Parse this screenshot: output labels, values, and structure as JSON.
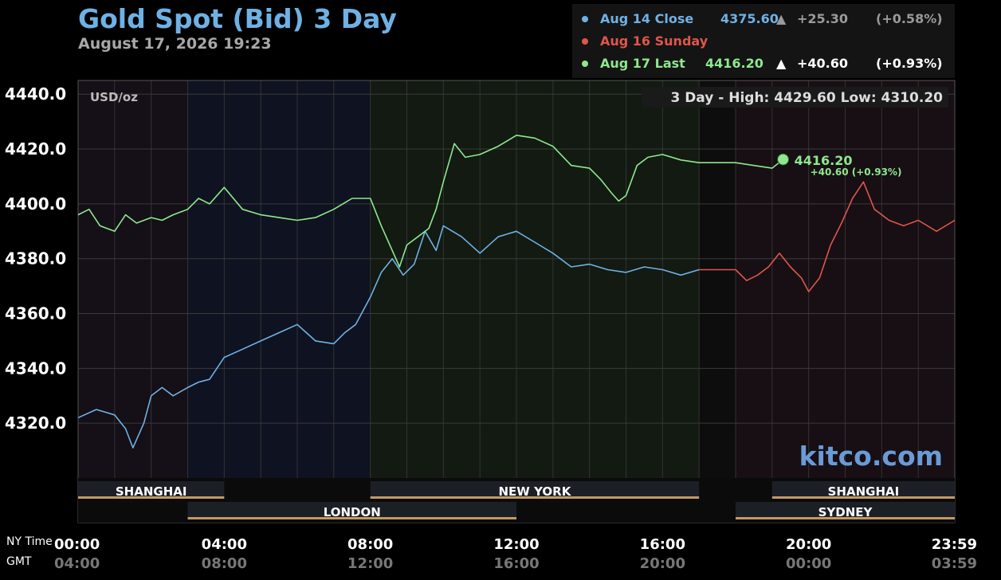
{
  "header": {
    "title": "Gold Spot (Bid) 3 Day",
    "timestamp": "August 17, 2026 19:23"
  },
  "legend": [
    {
      "label": "Aug 14 Close",
      "price": "4375.60",
      "arrow": "▲",
      "change": "+25.30",
      "pct": "(+0.58%)",
      "color": "#6fb1e4",
      "change_color": "#9a9a9a"
    },
    {
      "label": "Aug 16 Sunday",
      "price": "",
      "arrow": "",
      "change": "",
      "pct": "",
      "color": "#e0554a",
      "change_color": "#9a9a9a"
    },
    {
      "label": "Aug 17 Last",
      "price": "4416.20",
      "arrow": "▲",
      "change": "+40.60",
      "pct": "(+0.93%)",
      "color": "#8ee88e",
      "change_color": "#ffffff"
    }
  ],
  "brand": "kitco.com",
  "chart_data": {
    "type": "line",
    "unit_label": "USD/oz",
    "high_low": "3 Day - High: 4429.60  Low: 4310.20",
    "ylim": [
      4300,
      4445
    ],
    "y_ticks": [
      "4440.0",
      "4420.0",
      "4400.0",
      "4380.0",
      "4360.0",
      "4340.0",
      "4320.0"
    ],
    "y_tick_values": [
      4440,
      4420,
      4400,
      4380,
      4360,
      4340,
      4320
    ],
    "xlim": [
      0,
      24
    ],
    "x_ticks_ny": [
      "00:00",
      "04:00",
      "08:00",
      "12:00",
      "16:00",
      "20:00",
      "23:59"
    ],
    "x_ticks_gmt": [
      "04:00",
      "08:00",
      "12:00",
      "16:00",
      "20:00",
      "00:00",
      "03:59"
    ],
    "x_tick_hours": [
      0,
      4,
      8,
      12,
      16,
      20,
      24
    ],
    "ny_time_label": "NY Time",
    "gmt_label": "GMT",
    "sessions": [
      {
        "name": "SHANGHAI",
        "start": 0,
        "end": 4,
        "row": 1
      },
      {
        "name": "LONDON",
        "start": 3,
        "end": 12,
        "row": 2
      },
      {
        "name": "NEW YORK",
        "start": 8,
        "end": 17,
        "row": 1
      },
      {
        "name": "SHANGHAI",
        "start": 19,
        "end": 24,
        "row": 1
      },
      {
        "name": "SYDNEY",
        "start": 18,
        "end": 24,
        "row": 2
      }
    ],
    "series": [
      {
        "name": "Aug 14 Close",
        "color": "#6fb1e4",
        "x": [
          0,
          0.5,
          1,
          1.3,
          1.5,
          1.8,
          2,
          2.3,
          2.6,
          3,
          3.3,
          3.6,
          4,
          4.5,
          5,
          5.5,
          6,
          6.5,
          7,
          7.3,
          7.6,
          8,
          8.3,
          8.6,
          8.9,
          9.2,
          9.5,
          9.8,
          10,
          10.5,
          11,
          11.5,
          12,
          12.5,
          13,
          13.5,
          14,
          14.5,
          15,
          15.5,
          16,
          16.5,
          17
        ],
        "y": [
          4322,
          4325,
          4323,
          4318,
          4311,
          4320,
          4330,
          4333,
          4330,
          4333,
          4335,
          4336,
          4344,
          4347,
          4350,
          4353,
          4356,
          4350,
          4349,
          4353,
          4356,
          4366,
          4375,
          4380,
          4374,
          4378,
          4390,
          4383,
          4392,
          4388,
          4382,
          4388,
          4390,
          4386,
          4382,
          4377,
          4378,
          4376,
          4375,
          4377,
          4376,
          4374,
          4376
        ]
      },
      {
        "name": "Aug 17 Last",
        "color": "#8ee88e",
        "x": [
          0,
          0.3,
          0.6,
          1,
          1.3,
          1.6,
          2,
          2.3,
          2.6,
          3,
          3.3,
          3.6,
          4,
          4.5,
          5,
          5.5,
          6,
          6.5,
          7,
          7.5,
          8,
          8.3,
          8.6,
          8.8,
          9,
          9.3,
          9.6,
          9.8,
          10,
          10.3,
          10.6,
          11,
          11.5,
          12,
          12.5,
          13,
          13.5,
          14,
          14.3,
          14.6,
          14.8,
          15,
          15.3,
          15.6,
          16,
          16.5,
          17,
          18,
          18.5,
          19,
          19.3
        ],
        "y": [
          4396,
          4398,
          4392,
          4390,
          4396,
          4393,
          4395,
          4394,
          4396,
          4398,
          4402,
          4400,
          4406,
          4398,
          4396,
          4395,
          4394,
          4395,
          4398,
          4402,
          4402,
          4392,
          4383,
          4377,
          4385,
          4388,
          4391,
          4398,
          4408,
          4422,
          4417,
          4418,
          4421,
          4425,
          4424,
          4421,
          4414,
          4413,
          4409,
          4404,
          4401,
          4403,
          4414,
          4417,
          4418,
          4416,
          4415,
          4415,
          4414,
          4413,
          4416.2
        ]
      },
      {
        "name": "Aug 16 Sunday",
        "color": "#e0554a",
        "x": [
          17,
          18,
          18.3,
          18.6,
          18.9,
          19.2,
          19.5,
          19.8,
          20,
          20.3,
          20.6,
          20.9,
          21.2,
          21.5,
          21.8,
          22.2,
          22.6,
          23,
          23.5,
          24
        ],
        "y": [
          4376,
          4376,
          4372,
          4374,
          4377,
          4382,
          4377,
          4373,
          4368,
          4373,
          4385,
          4393,
          4402,
          4408,
          4398,
          4394,
          4392,
          4394,
          4390,
          4394
        ]
      }
    ],
    "last_point": {
      "x": 19.3,
      "y": 4416.2,
      "price": "4416.20",
      "change": "+40.60 (+0.93%)"
    }
  }
}
